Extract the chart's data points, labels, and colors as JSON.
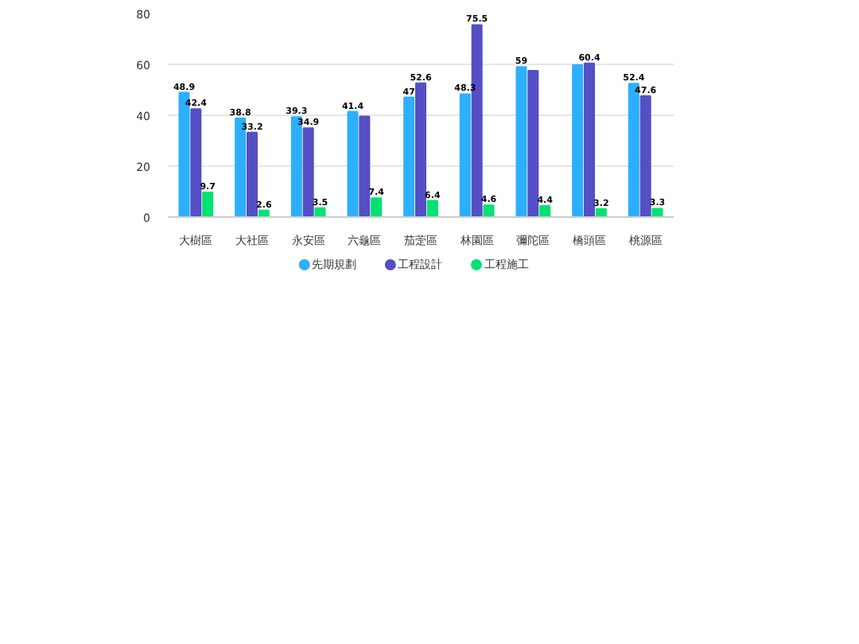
{
  "chart_data": {
    "type": "bar",
    "categories": [
      "大樹區",
      "大社區",
      "永安區",
      "六龜區",
      "茄萣區",
      "林園區",
      "彌陀區",
      "橋頭區",
      "桃源區"
    ],
    "series": [
      {
        "name": "先期規劃",
        "color": "#2caffe",
        "values": [
          48.9,
          38.8,
          39.3,
          41.4,
          47,
          48.3,
          59,
          59.8,
          52.4
        ],
        "value_labels": [
          "48.9",
          "38.8",
          "39.3",
          "41.4",
          "47",
          "48.3",
          "59",
          null,
          "52.4"
        ]
      },
      {
        "name": "工程設計",
        "color": "#544fc5",
        "values": [
          42.4,
          33.2,
          34.9,
          39.5,
          52.6,
          75.5,
          57.5,
          60.4,
          47.6
        ],
        "value_labels": [
          "42.4",
          "33.2",
          "34.9",
          null,
          "52.6",
          "75.5",
          null,
          "60.4",
          "47.6"
        ]
      },
      {
        "name": "工程施工",
        "color": "#00e272",
        "values": [
          9.7,
          2.6,
          3.5,
          7.4,
          6.4,
          4.6,
          4.4,
          3.2,
          3.3
        ],
        "value_labels": [
          "9.7",
          "2.6",
          "3.5",
          "7.4",
          "6.4",
          "4.6",
          "4.4",
          "3.2",
          "3.3"
        ]
      }
    ],
    "ylim": [
      0,
      80
    ],
    "yticks": [
      0,
      20,
      40,
      60,
      80
    ],
    "grid": "y",
    "legend": "bottom"
  }
}
